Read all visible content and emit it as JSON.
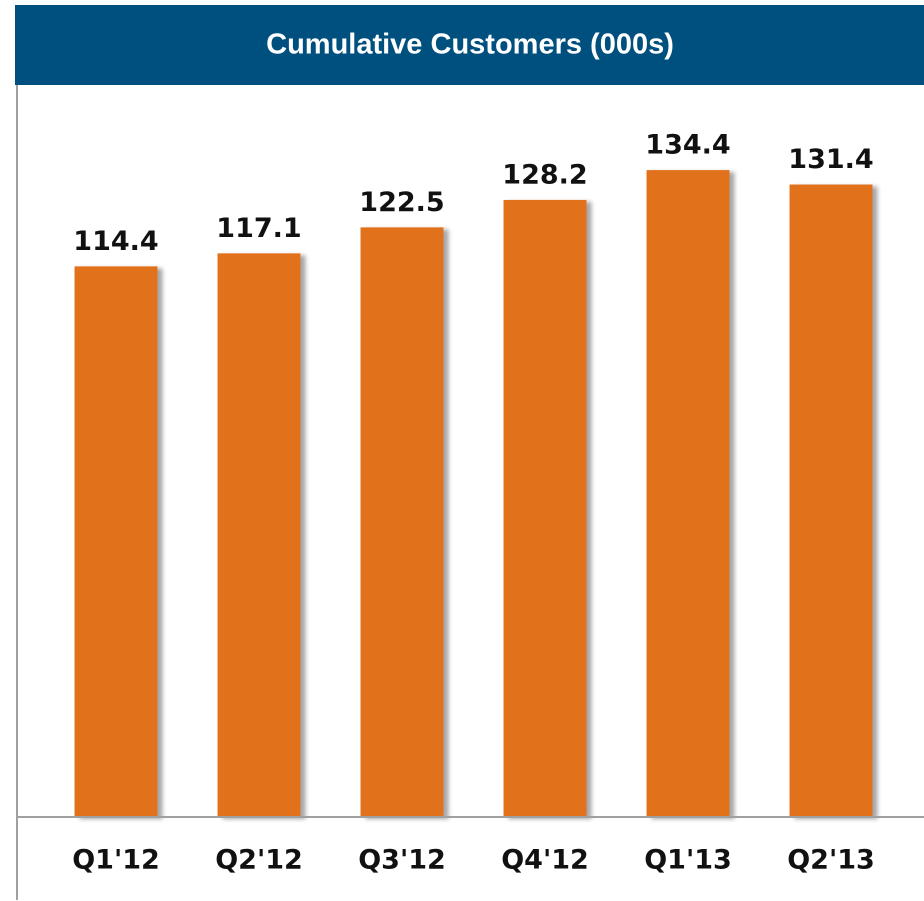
{
  "chart_data": {
    "type": "bar",
    "title": "Cumulative Customers (000s)",
    "categories": [
      "Q1'12",
      "Q2'12",
      "Q3'12",
      "Q4'12",
      "Q1'13",
      "Q2'13"
    ],
    "values": [
      114.4,
      117.1,
      122.5,
      128.2,
      134.4,
      131.4
    ],
    "color": "#e2711d",
    "ylim": [
      0,
      150
    ]
  }
}
